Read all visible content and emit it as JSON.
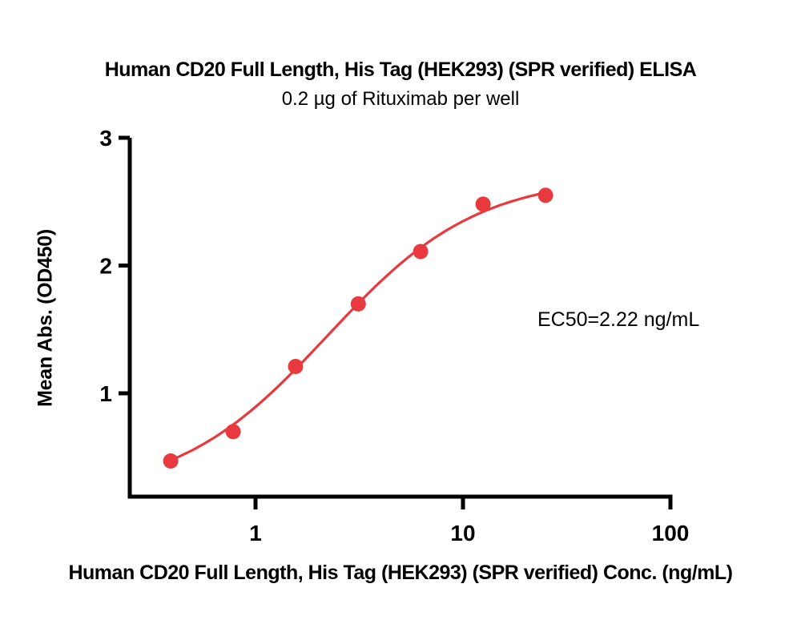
{
  "figure": {
    "title": "Human CD20 Full Length, His Tag (HEK293) (SPR verified) ELISA",
    "subtitle": "0.2 µg of Rituximab per well",
    "ylabel": "Mean Abs. (OD450)",
    "xlabel": "Human CD20 Full Length, His Tag (HEK293) (SPR verified) Conc. (ng/mL)",
    "annotation": "EC50=2.22 ng/mL"
  },
  "chart_data": {
    "type": "scatter",
    "title": "Human CD20 Full Length, His Tag (HEK293) (SPR verified) ELISA",
    "subtitle": "0.2 µg of Rituximab per well",
    "xlabel": "Human CD20 Full Length, His Tag (HEK293) (SPR verified) Conc. (ng/mL)",
    "ylabel": "Mean Abs. (OD450)",
    "x_scale": "log10",
    "x": [
      0.39,
      0.78,
      1.56,
      3.13,
      6.25,
      12.5,
      25
    ],
    "y": [
      0.47,
      0.7,
      1.21,
      1.7,
      2.11,
      2.48,
      2.55
    ],
    "x_ticks": [
      "1",
      "10",
      "100"
    ],
    "x_tick_values": [
      1,
      10,
      100
    ],
    "y_ticks": [
      "1",
      "2",
      "3"
    ],
    "y_tick_values": [
      1,
      2,
      3
    ],
    "xlim": [
      0.35,
      100
    ],
    "ylim": [
      0.2,
      3
    ],
    "ec50_label": "EC50=2.22 ng/mL",
    "ec50_value_ng_ml": 2.22,
    "fit_4pl": {
      "bottom": 0.2,
      "top": 2.7,
      "ec50": 2.22,
      "hill": 1.2
    },
    "grid": false,
    "legend": "none",
    "point_color": "#E8393E",
    "line_color": "#E8393E",
    "axis_color": "#000000"
  }
}
